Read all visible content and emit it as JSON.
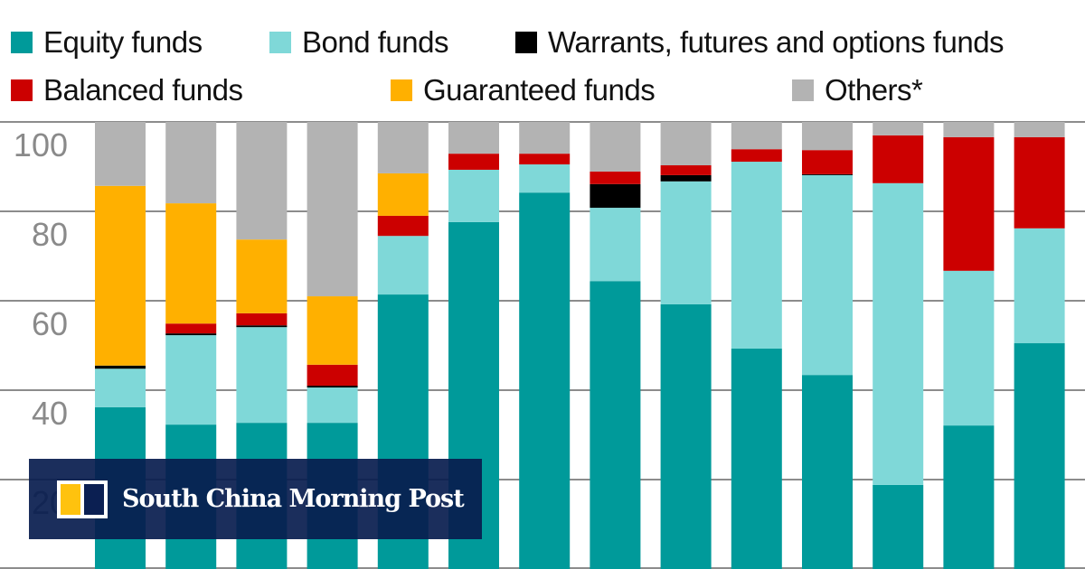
{
  "chart_data": {
    "type": "bar",
    "stacked": true,
    "title": "",
    "xlabel": "",
    "ylabel": "",
    "ylim": [
      0,
      100
    ],
    "yticks": [
      20,
      40,
      60,
      80,
      100
    ],
    "grid": true,
    "legend_position": "top",
    "categories": [
      "",
      "",
      "",
      "",
      "",
      "",
      "",
      "",
      "",
      "",
      "",
      "",
      "",
      ""
    ],
    "series": [
      {
        "name": "Equity funds",
        "color": "#009a9a",
        "values": [
          36.2,
          32.3,
          32.7,
          32.7,
          61.4,
          77.6,
          84.2,
          64.4,
          59.2,
          49.3,
          43.4,
          18.8,
          32.1,
          50.5
        ]
      },
      {
        "name": "Bond funds",
        "color": "#7fd8d8",
        "values": [
          8.6,
          20.0,
          21.4,
          7.9,
          13.1,
          11.7,
          6.3,
          16.4,
          27.5,
          41.8,
          44.7,
          67.5,
          34.6,
          25.7
        ]
      },
      {
        "name": "Warrants, futures and options funds",
        "color": "#000000",
        "values": [
          0.7,
          0.4,
          0.4,
          0.4,
          0,
          0,
          0,
          5.3,
          1.4,
          0,
          0.2,
          0,
          0,
          0
        ]
      },
      {
        "name": "Balanced funds",
        "color": "#cc0000",
        "values": [
          0,
          2.2,
          2.7,
          4.7,
          4.5,
          3.6,
          2.4,
          2.8,
          2.2,
          2.8,
          5.4,
          10.7,
          29.9,
          20.4
        ]
      },
      {
        "name": "Guaranteed funds",
        "color": "#ffb000",
        "values": [
          40.2,
          26.9,
          16.5,
          15.3,
          9.5,
          0,
          0,
          0,
          0,
          0,
          0,
          0,
          0,
          0
        ]
      },
      {
        "name": "Others*",
        "color": "#b3b3b3",
        "values": [
          14.3,
          18.2,
          26.3,
          39.0,
          11.5,
          7.1,
          7.1,
          11.1,
          9.7,
          6.1,
          6.3,
          3.0,
          3.4,
          3.4
        ]
      }
    ]
  },
  "watermark": {
    "text": "South China Morning Post",
    "colors": {
      "background": "#0b1f52",
      "accent": "#ffc20e"
    }
  }
}
